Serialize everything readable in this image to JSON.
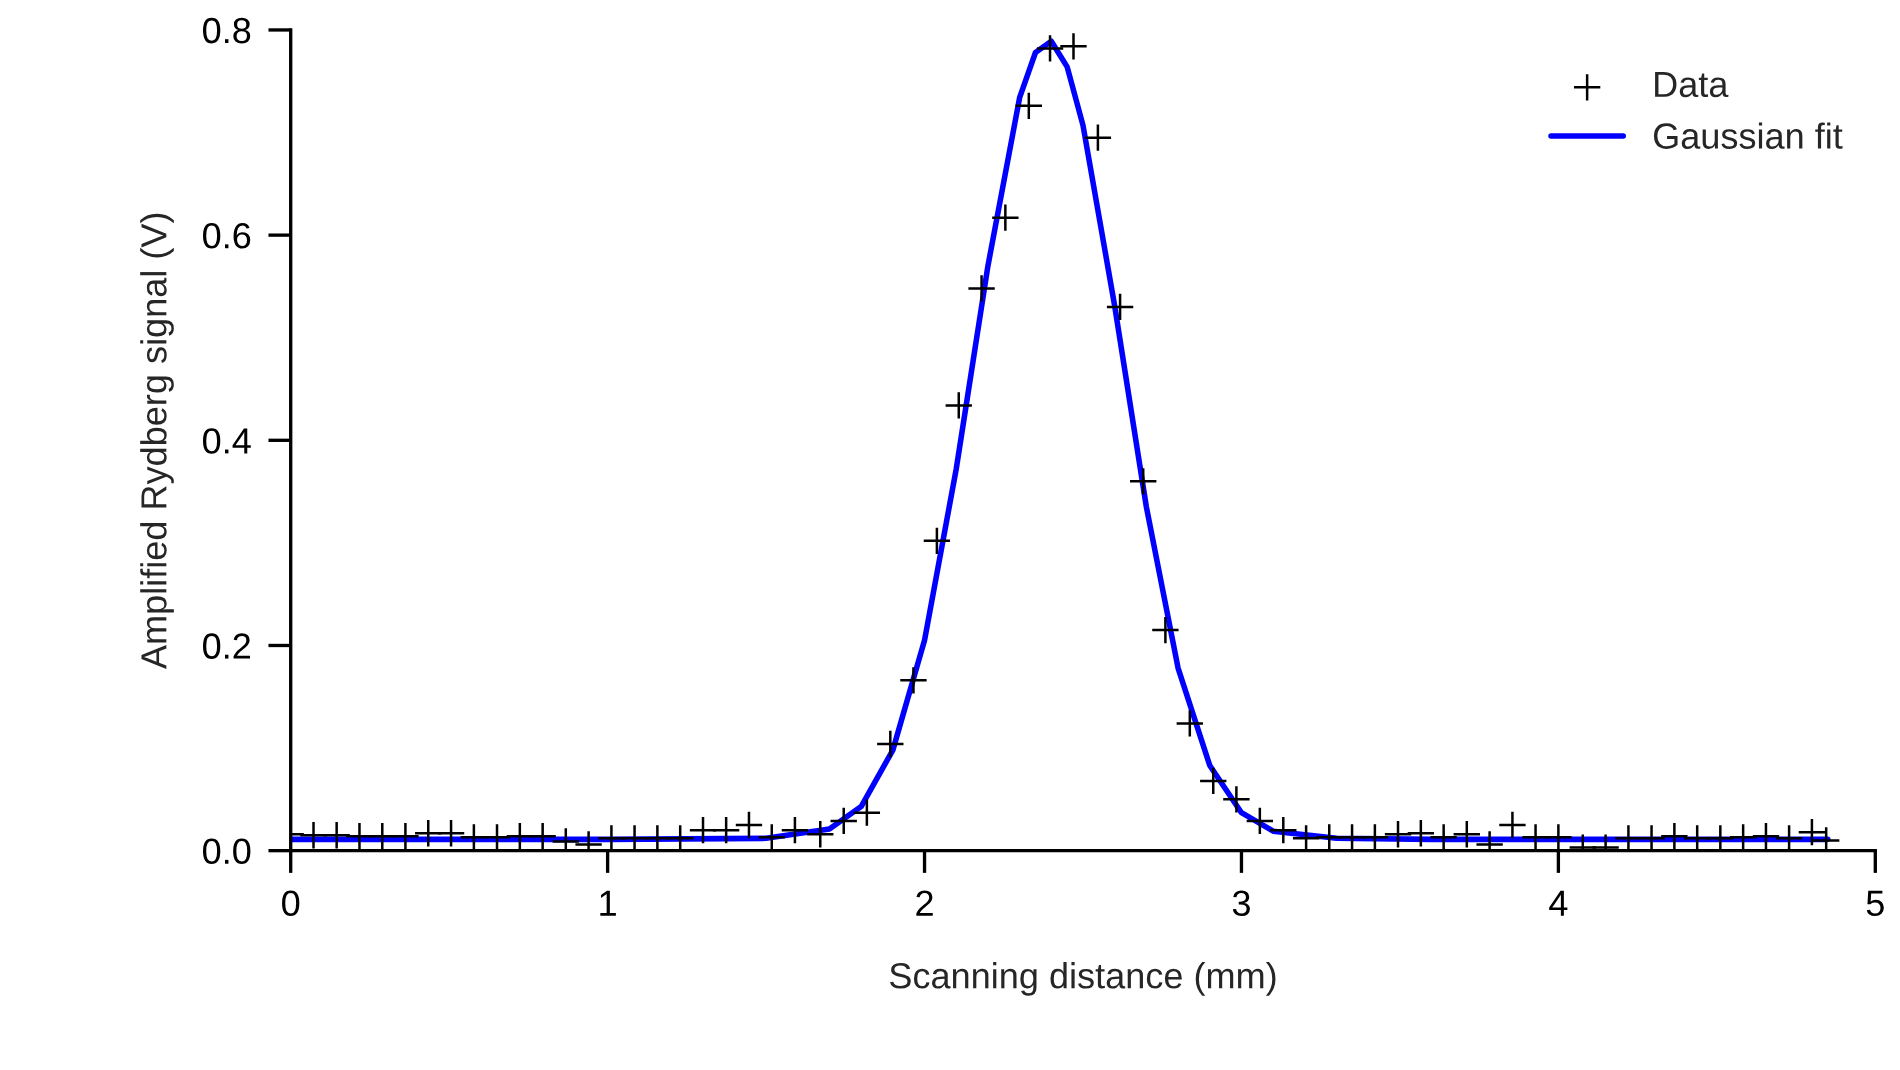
{
  "chart_data": {
    "type": "scatter",
    "xlabel": "Scanning distance (mm)",
    "ylabel": "Amplified Rydberg signal (V)",
    "xlim": [
      0,
      5
    ],
    "ylim": [
      0,
      0.8
    ],
    "xticks": [
      0,
      1,
      2,
      3,
      4,
      5
    ],
    "yticks": [
      {
        "value": 0,
        "label": "0.0"
      },
      {
        "value": 0.2,
        "label": "0.2"
      },
      {
        "value": 0.4,
        "label": "0.4"
      },
      {
        "value": 0.6,
        "label": "0.6"
      },
      {
        "value": 0.8,
        "label": "0.8"
      }
    ],
    "grid": false,
    "legend": "top right",
    "series": [
      {
        "name": "Data",
        "marker": "cross",
        "color": "#000000",
        "x": [
          0,
          0.072,
          0.145,
          0.217,
          0.289,
          0.362,
          0.434,
          0.506,
          0.578,
          0.651,
          0.723,
          0.795,
          0.868,
          0.94,
          1.012,
          1.085,
          1.157,
          1.229,
          1.301,
          1.374,
          1.446,
          1.518,
          1.591,
          1.671,
          1.745,
          1.818,
          1.892,
          1.965,
          2.039,
          2.108,
          2.18,
          2.255,
          2.329,
          2.396,
          2.47,
          2.547,
          2.617,
          2.69,
          2.76,
          2.837,
          2.911,
          2.984,
          3.058,
          3.132,
          3.204,
          3.277,
          3.349,
          3.421,
          3.494,
          3.566,
          3.638,
          3.711,
          3.783,
          3.855,
          3.928,
          4.0,
          4.077,
          4.149,
          4.221,
          4.294,
          4.366,
          4.438,
          4.511,
          4.583,
          4.655,
          4.728,
          4.8,
          4.845
        ],
        "values": [
          0.016,
          0.015,
          0.015,
          0.014,
          0.014,
          0.014,
          0.017,
          0.017,
          0.013,
          0.013,
          0.014,
          0.014,
          0.009,
          0.006,
          0.012,
          0.012,
          0.012,
          0.012,
          0.02,
          0.02,
          0.025,
          0.013,
          0.02,
          0.016,
          0.029,
          0.037,
          0.104,
          0.166,
          0.302,
          0.434,
          0.548,
          0.617,
          0.726,
          0.782,
          0.784,
          0.695,
          0.53,
          0.36,
          0.215,
          0.124,
          0.068,
          0.05,
          0.029,
          0.02,
          0.012,
          0.013,
          0.013,
          0.013,
          0.016,
          0.017,
          0.013,
          0.016,
          0.006,
          0.025,
          0.013,
          0.013,
          0.003,
          0.003,
          0.012,
          0.012,
          0.014,
          0.012,
          0.012,
          0.013,
          0.014,
          0.012,
          0.018,
          0.01
        ]
      },
      {
        "name": "Gaussian fit",
        "type": "line",
        "marker": "none",
        "line_style": "solid",
        "color": "#0000ff",
        "x": [
          0,
          1.0,
          1.5,
          1.7,
          1.8,
          1.9,
          2.0,
          2.1,
          2.2,
          2.3,
          2.35,
          2.4,
          2.45,
          2.5,
          2.6,
          2.7,
          2.8,
          2.9,
          3.0,
          3.1,
          3.3,
          3.6,
          4.85
        ],
        "values": [
          0.011,
          0.011,
          0.012,
          0.021,
          0.043,
          0.098,
          0.205,
          0.372,
          0.57,
          0.734,
          0.778,
          0.789,
          0.764,
          0.707,
          0.531,
          0.335,
          0.178,
          0.083,
          0.037,
          0.019,
          0.012,
          0.011,
          0.011
        ]
      }
    ]
  }
}
